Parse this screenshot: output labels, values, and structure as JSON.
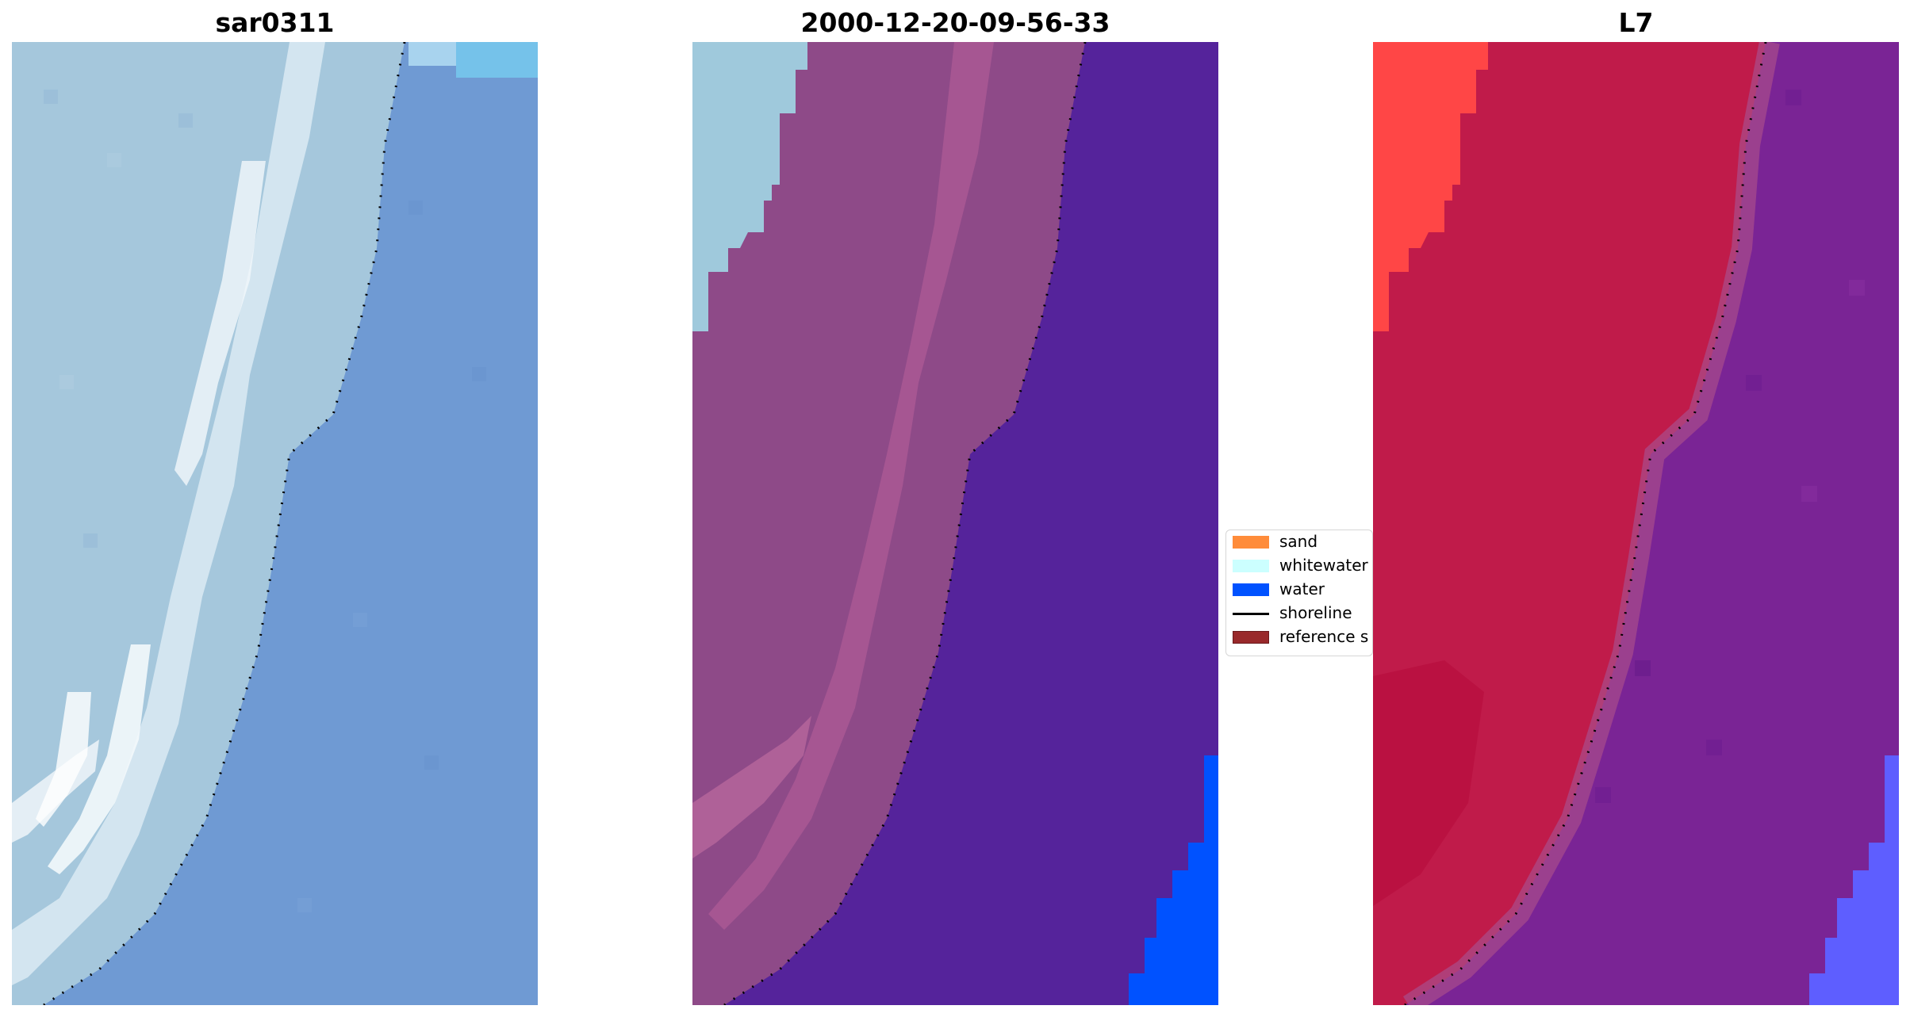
{
  "panels": [
    {
      "title": "sar0311"
    },
    {
      "title": "2000-12-20-09-56-33"
    },
    {
      "title": "L7"
    }
  ],
  "legend": {
    "items": [
      {
        "label": "sand",
        "color": "#ff8c3a",
        "kind": "patch"
      },
      {
        "label": "whitewater",
        "color": "#ccffff",
        "kind": "patch"
      },
      {
        "label": "water",
        "color": "#0052ff",
        "kind": "patch"
      },
      {
        "label": "shoreline",
        "color": "#000000",
        "kind": "line"
      },
      {
        "label": "reference s",
        "color": "#99292b",
        "kind": "patch"
      }
    ]
  },
  "colors": {
    "rgb_water": "#6f9ad3",
    "rgb_sand": "#a5c7dc",
    "rgb_whitewater": "#e8f2f8",
    "class_sand_overlay": "#8e4a88",
    "class_water_overlay": "#55239b",
    "class_upper_left_unclassified": "#9fc9dc",
    "class_bottom_right_water": "#0052ff",
    "nir_land": "#c01b4a",
    "nir_land_bright": "#ff4646",
    "nir_water": "#7a2495",
    "nir_deep": "#5e5eff"
  }
}
